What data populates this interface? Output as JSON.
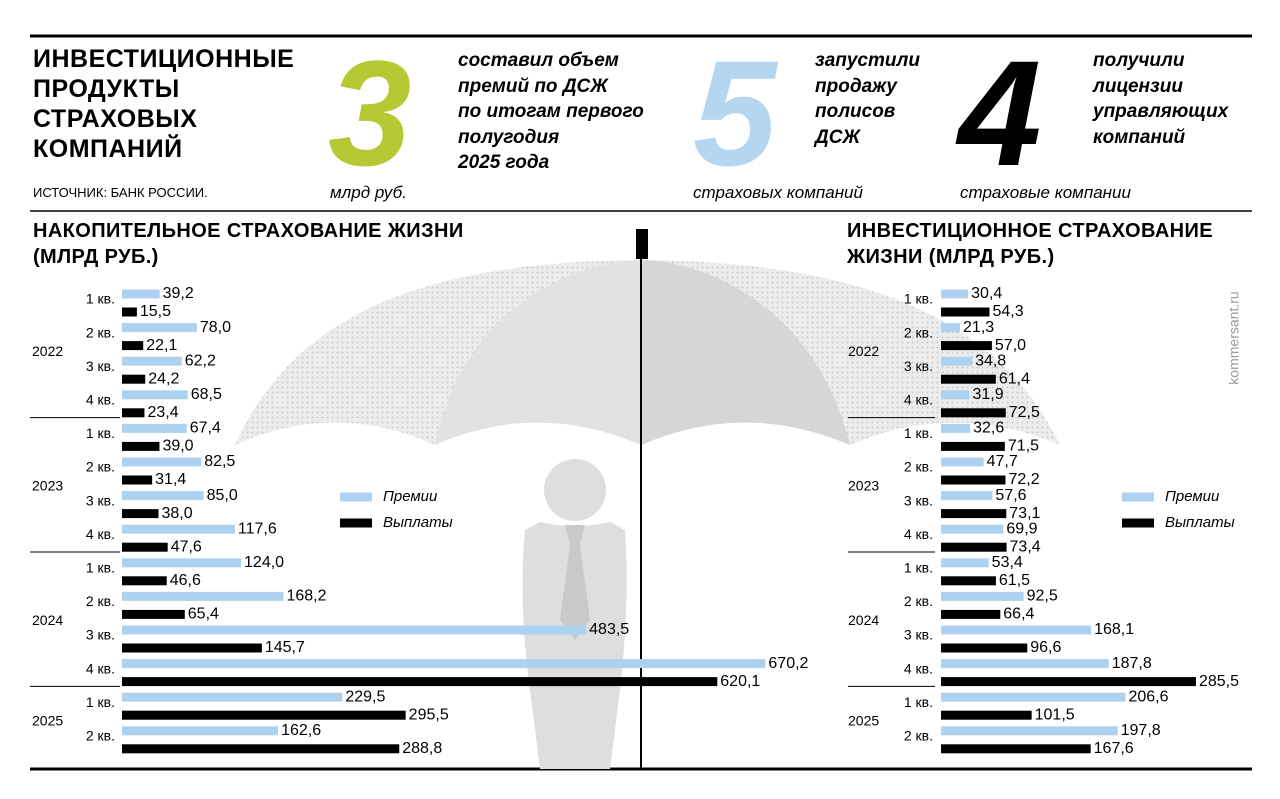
{
  "header": {
    "title_lines": [
      "ИНВЕСТИЦИОННЫЕ",
      "ПРОДУКТЫ",
      "СТРАХОВЫХ",
      "КОМПАНИЙ"
    ],
    "source": "ИСТОЧНИК: БАНК РОССИИ.",
    "stats": [
      {
        "value": 3,
        "unit": "млрд руб.",
        "text_lines": [
          "составил объем",
          "премий по ДСЖ",
          "по итогам первого",
          "полугодия",
          "2025 года"
        ],
        "color": "#b6c935"
      },
      {
        "value": 5,
        "unit": "страховых компаний",
        "text_lines": [
          "запустили",
          "продажу",
          "полисов",
          "ДСЖ"
        ],
        "color": "#b4d6f1"
      },
      {
        "value": 4,
        "unit": "страховые компании",
        "text_lines": [
          "получили",
          "лицензии",
          "управляющих",
          "компаний"
        ],
        "color": "#000000"
      }
    ]
  },
  "watermark": "kommersant.ru",
  "chart_data": [
    {
      "type": "bar",
      "orientation": "horizontal",
      "title": "НАКОПИТЕЛЬНОЕ СТРАХОВАНИЕ ЖИЗНИ (МЛРД РУБ.)",
      "groups": [
        {
          "year": "2022",
          "quarters": [
            "1 кв.",
            "2 кв.",
            "3 кв.",
            "4 кв."
          ]
        },
        {
          "year": "2023",
          "quarters": [
            "1 кв.",
            "2 кв.",
            "3 кв.",
            "4 кв."
          ]
        },
        {
          "year": "2024",
          "quarters": [
            "1 кв.",
            "2 кв.",
            "3 кв.",
            "4 кв."
          ]
        },
        {
          "year": "2025",
          "quarters": [
            "1 кв.",
            "2 кв."
          ]
        }
      ],
      "series": [
        {
          "name": "Премии",
          "color": "#acd2f0",
          "values": [
            39.2,
            78.0,
            62.2,
            68.5,
            67.4,
            82.5,
            85.0,
            117.6,
            124.0,
            168.2,
            483.5,
            670.2,
            229.5,
            162.6
          ],
          "value_labels": [
            "39,2",
            "78,0",
            "62,2",
            "68,5",
            "67,4",
            "82,5",
            "85,0",
            "117,6",
            "124,0",
            "168,2",
            "483,5",
            "670,2",
            "229,5",
            "162,6"
          ]
        },
        {
          "name": "Выплаты",
          "color": "#000000",
          "values": [
            15.5,
            22.1,
            24.2,
            23.4,
            39.0,
            31.4,
            38.0,
            47.6,
            46.6,
            65.4,
            145.7,
            620.1,
            295.5,
            288.8
          ],
          "value_labels": [
            "15,5",
            "22,1",
            "24,2",
            "23,4",
            "39,0",
            "31,4",
            "38,0",
            "47,6",
            "46,6",
            "65,4",
            "145,7",
            "620,1",
            "295,5",
            "288,8"
          ]
        }
      ]
    },
    {
      "type": "bar",
      "orientation": "horizontal",
      "title": "ИНВЕСТИЦИОННОЕ СТРАХОВАНИЕ ЖИЗНИ (МЛРД РУБ.)",
      "groups": [
        {
          "year": "2022",
          "quarters": [
            "1 кв.",
            "2 кв.",
            "3 кв.",
            "4 кв."
          ]
        },
        {
          "year": "2023",
          "quarters": [
            "1 кв.",
            "2 кв.",
            "3 кв.",
            "4 кв."
          ]
        },
        {
          "year": "2024",
          "quarters": [
            "1 кв.",
            "2 кв.",
            "3 кв.",
            "4 кв."
          ]
        },
        {
          "year": "2025",
          "quarters": [
            "1 кв.",
            "2 кв."
          ]
        }
      ],
      "series": [
        {
          "name": "Премии",
          "color": "#acd2f0",
          "values": [
            30.4,
            21.3,
            34.8,
            31.9,
            32.6,
            47.7,
            57.6,
            69.9,
            53.4,
            92.5,
            168.1,
            187.8,
            206.6,
            197.8
          ],
          "value_labels": [
            "30,4",
            "21,3",
            "34,8",
            "31,9",
            "32,6",
            "47,7",
            "57,6",
            "69,9",
            "53,4",
            "92,5",
            "168,1",
            "187,8",
            "206,6",
            "197,8"
          ]
        },
        {
          "name": "Выплаты",
          "color": "#000000",
          "values": [
            54.3,
            57.0,
            61.4,
            72.5,
            71.5,
            72.2,
            73.1,
            73.4,
            61.5,
            66.4,
            96.6,
            285.5,
            101.5,
            167.6
          ],
          "value_labels": [
            "54,3",
            "57,0",
            "61,4",
            "72,5",
            "71,5",
            "72,2",
            "73,1",
            "73,4",
            "61,5",
            "66,4",
            "96,6",
            "285,5",
            "101,5",
            "167,6"
          ]
        }
      ]
    }
  ]
}
